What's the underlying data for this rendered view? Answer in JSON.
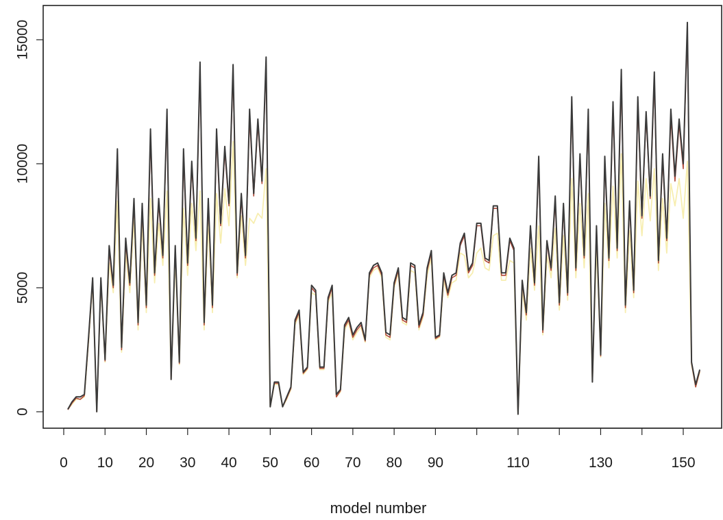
{
  "chart_data": {
    "type": "line",
    "title": "",
    "xlabel": "model number",
    "ylabel": "",
    "xlim": [
      -4,
      158
    ],
    "ylim": [
      -700,
      16300
    ],
    "x_ticks": [
      0,
      10,
      20,
      30,
      40,
      50,
      60,
      70,
      80,
      90,
      110,
      130,
      150
    ],
    "x_tick_marks": [
      0,
      10,
      20,
      30,
      40,
      50,
      60,
      70,
      80,
      90,
      100,
      110,
      120,
      130,
      140,
      150
    ],
    "y_ticks": [
      0,
      5000,
      10000,
      15000
    ],
    "grid": false,
    "legend": "none",
    "colors": {
      "primary": "#3a3a3a",
      "secondary": "#f7eeb0",
      "tertiary": "#b24a3a",
      "frame": "#222222"
    },
    "x": [
      1,
      2,
      3,
      4,
      5,
      6,
      7,
      8,
      9,
      10,
      11,
      12,
      13,
      14,
      15,
      16,
      17,
      18,
      19,
      20,
      21,
      22,
      23,
      24,
      25,
      26,
      27,
      28,
      29,
      30,
      31,
      32,
      33,
      34,
      35,
      36,
      37,
      38,
      39,
      40,
      41,
      42,
      43,
      44,
      45,
      46,
      47,
      48,
      49,
      50,
      51,
      52,
      53,
      54,
      55,
      56,
      57,
      58,
      59,
      60,
      61,
      62,
      63,
      64,
      65,
      66,
      67,
      68,
      69,
      70,
      71,
      72,
      73,
      74,
      75,
      76,
      77,
      78,
      79,
      80,
      81,
      82,
      83,
      84,
      85,
      86,
      87,
      88,
      89,
      90,
      91,
      92,
      93,
      94,
      95,
      96,
      97,
      98,
      99,
      100,
      101,
      102,
      103,
      104,
      105,
      106,
      107,
      108,
      109,
      110,
      111,
      112,
      113,
      114,
      115,
      116,
      117,
      118,
      119,
      120,
      121,
      122,
      123,
      124,
      125,
      126,
      127,
      128,
      129,
      130,
      131,
      132,
      133,
      134,
      135,
      136,
      137,
      138,
      139,
      140,
      141,
      142,
      143,
      144,
      145,
      146,
      147,
      148,
      149,
      150,
      151,
      152,
      153,
      154
    ],
    "series": [
      {
        "values": [
          100,
          400,
          600,
          600,
          700,
          3000,
          5400,
          0,
          5400,
          2100,
          6700,
          5100,
          10600,
          2600,
          7000,
          5200,
          8600,
          3600,
          8400,
          4300,
          11400,
          5600,
          8600,
          6300,
          12200,
          1300,
          6700,
          2000,
          10600,
          6000,
          10100,
          7000,
          14100,
          3600,
          8600,
          4300,
          11400,
          7600,
          10700,
          8400,
          14000,
          5600,
          8800,
          6300,
          12200,
          8800,
          11800,
          9300,
          14300,
          200,
          1200,
          1200,
          200,
          600,
          1000,
          3700,
          4100,
          1600,
          1800,
          5100,
          4900,
          1800,
          1800,
          4600,
          5100,
          700,
          900,
          3500,
          3800,
          3100,
          3400,
          3600,
          2900,
          5600,
          5900,
          6000,
          5600,
          3200,
          3100,
          5200,
          5800,
          3800,
          3700,
          6000,
          5900,
          3500,
          4000,
          5800,
          6500,
          3000,
          3100,
          5600,
          4800,
          5500,
          5600,
          6800,
          7200,
          5700,
          6000,
          7600,
          7600,
          6200,
          6100,
          8300,
          8300,
          5600,
          5600,
          7000,
          6600,
          -100,
          5300,
          4000,
          7500,
          5200,
          10300,
          3300,
          6900,
          5800,
          8700,
          4400,
          8400,
          4800,
          12700,
          5800,
          10400,
          6300,
          12200,
          1200,
          7500,
          2300,
          10300,
          6200,
          12500,
          6600,
          13800,
          4300,
          8500,
          4900,
          12700,
          7900,
          12100,
          8700,
          13700,
          6100,
          10400,
          7000,
          12200,
          9500,
          11800,
          10000,
          15700,
          2000,
          1100,
          1700
        ],
        "color": "#3a3a3a"
      },
      {
        "values": [
          100,
          300,
          500,
          500,
          600,
          2800,
          5200,
          0,
          5200,
          2000,
          6000,
          4800,
          8500,
          2400,
          6400,
          4800,
          7800,
          3300,
          7600,
          4000,
          8600,
          5200,
          7600,
          5900,
          8900,
          1300,
          6200,
          1900,
          8200,
          5500,
          8400,
          6500,
          8900,
          3300,
          7600,
          4000,
          8800,
          6800,
          9000,
          7500,
          10900,
          5400,
          7900,
          5900,
          7800,
          7600,
          8000,
          7800,
          9800,
          200,
          1100,
          1100,
          200,
          500,
          900,
          3500,
          3900,
          1500,
          1700,
          4800,
          4700,
          1700,
          1700,
          4400,
          4800,
          600,
          800,
          3300,
          3600,
          2900,
          3200,
          3400,
          2800,
          5400,
          5700,
          5800,
          5400,
          3000,
          2900,
          5000,
          5600,
          3600,
          3500,
          5700,
          5600,
          3300,
          3800,
          5500,
          6200,
          2900,
          3000,
          5300,
          4600,
          5200,
          5300,
          6400,
          6300,
          5400,
          5600,
          6400,
          6600,
          5800,
          5700,
          7100,
          7200,
          5300,
          5300,
          6100,
          6000,
          -100,
          4900,
          3700,
          6600,
          4900,
          7500,
          3100,
          6300,
          5400,
          7400,
          4100,
          7100,
          4500,
          9400,
          5400,
          8400,
          5800,
          8800,
          1200,
          6700,
          2200,
          8400,
          5800,
          9100,
          6200,
          10400,
          4000,
          7300,
          4600,
          9300,
          7100,
          9400,
          7700,
          9800,
          5700,
          8600,
          6400,
          9200,
          8300,
          9400,
          7800,
          10100,
          1900,
          1000,
          1600
        ],
        "color": "#f7eeb0"
      },
      {
        "values": [
          80,
          350,
          550,
          500,
          650,
          2900,
          5300,
          0,
          5300,
          2050,
          6500,
          5000,
          10300,
          2500,
          6800,
          5100,
          8400,
          3500,
          8200,
          4200,
          11100,
          5500,
          8400,
          6200,
          11900,
          1300,
          6600,
          1950,
          10300,
          5900,
          9900,
          6900,
          13800,
          3500,
          8400,
          4200,
          11100,
          7500,
          10500,
          8300,
          13700,
          5500,
          8600,
          6200,
          11900,
          8700,
          11600,
          9200,
          14000,
          200,
          1150,
          1150,
          200,
          550,
          950,
          3600,
          4000,
          1550,
          1750,
          5000,
          4800,
          1750,
          1750,
          4500,
          5000,
          600,
          850,
          3400,
          3700,
          3000,
          3300,
          3500,
          2850,
          5500,
          5800,
          5900,
          5500,
          3100,
          3000,
          5100,
          5700,
          3700,
          3600,
          5900,
          5800,
          3400,
          3900,
          5700,
          6400,
          2950,
          3050,
          5500,
          4700,
          5400,
          5500,
          6700,
          7100,
          5600,
          5900,
          7500,
          7500,
          6100,
          6000,
          8200,
          8200,
          5500,
          5500,
          6900,
          6500,
          -100,
          5200,
          3900,
          7400,
          5100,
          10100,
          3200,
          6800,
          5700,
          8500,
          4300,
          8200,
          4700,
          12400,
          5700,
          10200,
          6200,
          11900,
          1200,
          7400,
          2250,
          10100,
          6100,
          12200,
          6500,
          13500,
          4200,
          8300,
          4800,
          12400,
          7800,
          11900,
          8600,
          13400,
          6000,
          10200,
          6900,
          11900,
          9300,
          11600,
          9800,
          15400,
          1950,
          1000,
          1650
        ],
        "color": "#b24a3a"
      }
    ]
  }
}
